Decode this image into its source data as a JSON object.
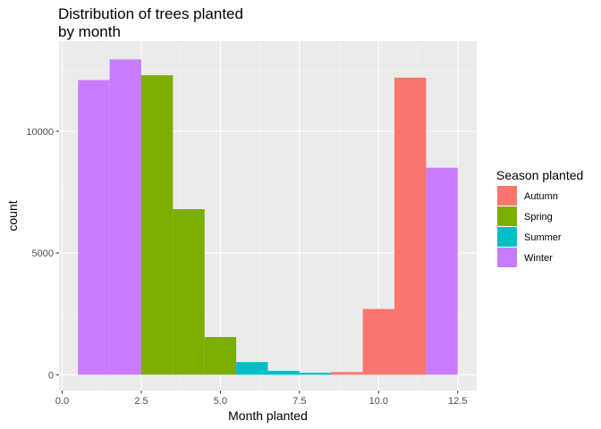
{
  "chart_data": {
    "type": "bar",
    "title": "Distribution of trees planted\nby month",
    "xlabel": "Month planted",
    "ylabel": "count",
    "xlim": [
      -0.1,
      13.1
    ],
    "ylim": [
      -650,
      13700
    ],
    "x_ticks": [
      0.0,
      2.5,
      5.0,
      7.5,
      10.0,
      12.5
    ],
    "x_tick_labels": [
      "0.0",
      "2.5",
      "5.0",
      "7.5",
      "10.0",
      "12.5"
    ],
    "y_ticks": [
      0,
      5000,
      10000
    ],
    "y_tick_labels": [
      "0",
      "5000",
      "10000"
    ],
    "grid": true,
    "legend": {
      "title": "Season planted",
      "position": "right",
      "entries": [
        {
          "label": "Autumn",
          "color": "#F8766D"
        },
        {
          "label": "Spring",
          "color": "#7CAE00"
        },
        {
          "label": "Summer",
          "color": "#00BFC4"
        },
        {
          "label": "Winter",
          "color": "#C77CFF"
        }
      ]
    },
    "bars": [
      {
        "x_start": 0.5,
        "x_end": 1.5,
        "value": 12100,
        "season": "Winter"
      },
      {
        "x_start": 1.5,
        "x_end": 2.5,
        "value": 12950,
        "season": "Winter"
      },
      {
        "x_start": 2.5,
        "x_end": 3.5,
        "value": 12300,
        "season": "Spring"
      },
      {
        "x_start": 3.5,
        "x_end": 4.5,
        "value": 6800,
        "season": "Spring"
      },
      {
        "x_start": 4.5,
        "x_end": 5.5,
        "value": 1550,
        "season": "Spring"
      },
      {
        "x_start": 5.5,
        "x_end": 6.5,
        "value": 520,
        "season": "Summer"
      },
      {
        "x_start": 6.5,
        "x_end": 7.5,
        "value": 160,
        "season": "Summer"
      },
      {
        "x_start": 7.5,
        "x_end": 8.5,
        "value": 80,
        "season": "Summer"
      },
      {
        "x_start": 8.5,
        "x_end": 9.5,
        "value": 110,
        "season": "Autumn"
      },
      {
        "x_start": 9.5,
        "x_end": 10.5,
        "value": 2700,
        "season": "Autumn"
      },
      {
        "x_start": 10.5,
        "x_end": 11.5,
        "value": 12200,
        "season": "Autumn"
      },
      {
        "x_start": 11.5,
        "x_end": 12.5,
        "value": 8500,
        "season": "Winter"
      }
    ]
  }
}
